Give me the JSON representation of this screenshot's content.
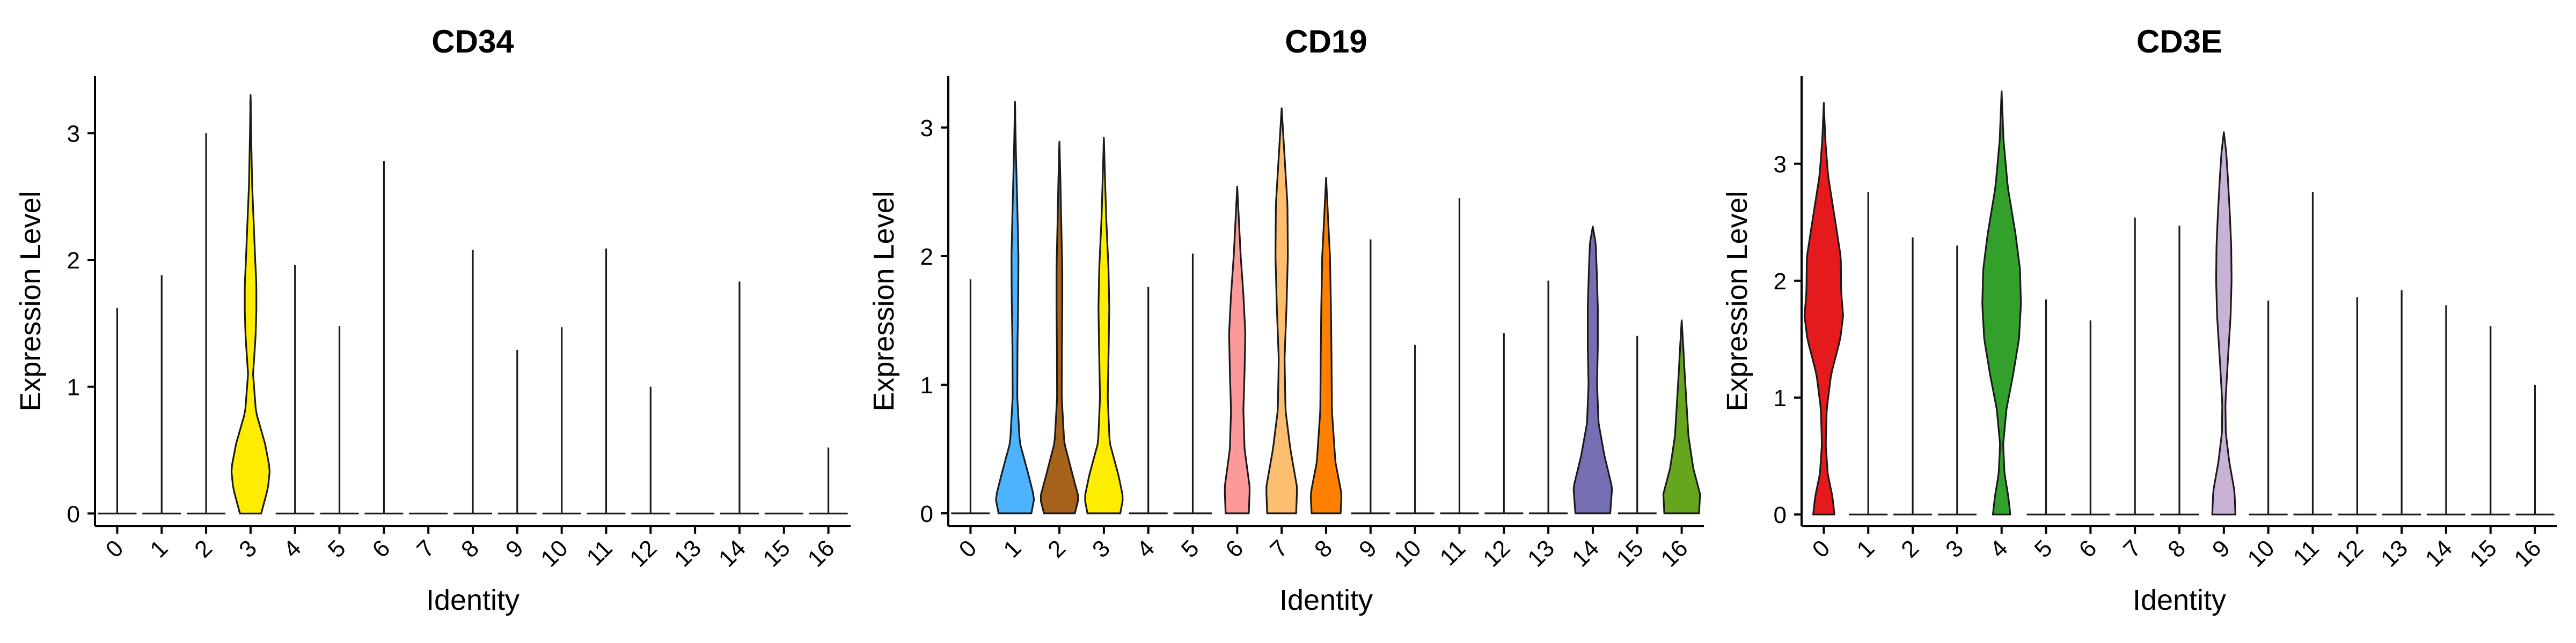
{
  "chart_data": [
    {
      "type": "violin",
      "title": "CD34",
      "xlabel": "Identity",
      "ylabel": "Expression Level",
      "categories": [
        "0",
        "1",
        "2",
        "3",
        "4",
        "5",
        "6",
        "7",
        "8",
        "9",
        "10",
        "11",
        "12",
        "13",
        "14",
        "15",
        "16"
      ],
      "y_ticks": [
        0,
        1,
        2,
        3
      ],
      "ylim": [
        -0.1,
        3.45
      ],
      "colors": [
        "#e41a1c",
        "#4db3ff",
        "#a6611a",
        "#ffed00",
        "#33a02c",
        "#ff1493",
        "#fb9a99",
        "#fdbf6f",
        "#ff7f00",
        "#cab2d6",
        "#6a3d9a",
        "#ffff99",
        "#b15928",
        "#8dd3c7",
        "#7570b3",
        "#e7298a",
        "#66a61e"
      ],
      "max_values": [
        1.62,
        1.88,
        3.0,
        3.3,
        1.96,
        1.48,
        2.78,
        0.0,
        2.08,
        1.29,
        1.47,
        2.09,
        1.0,
        0.0,
        1.83,
        0.0,
        0.52
      ],
      "density_profiles": [
        null,
        null,
        null,
        [
          [
            0.0,
            0.55
          ],
          [
            0.2,
            0.9
          ],
          [
            0.35,
            1.0
          ],
          [
            0.55,
            0.75
          ],
          [
            0.8,
            0.28
          ],
          [
            1.1,
            0.13
          ],
          [
            1.4,
            0.26
          ],
          [
            1.6,
            0.3
          ],
          [
            1.8,
            0.3
          ],
          [
            2.0,
            0.24
          ],
          [
            2.3,
            0.16
          ],
          [
            2.6,
            0.08
          ],
          [
            3.0,
            0.03
          ],
          [
            3.3,
            0.0
          ]
        ],
        null,
        null,
        null,
        null,
        null,
        null,
        null,
        null,
        null,
        null,
        null,
        null,
        null
      ]
    },
    {
      "type": "violin",
      "title": "CD19",
      "xlabel": "Identity",
      "ylabel": "Expression Level",
      "categories": [
        "0",
        "1",
        "2",
        "3",
        "4",
        "5",
        "6",
        "7",
        "8",
        "9",
        "10",
        "11",
        "12",
        "13",
        "14",
        "15",
        "16"
      ],
      "y_ticks": [
        0,
        1,
        2,
        3
      ],
      "ylim": [
        -0.1,
        3.4
      ],
      "colors": [
        "#e41a1c",
        "#4db3ff",
        "#a6611a",
        "#ffed00",
        "#33a02c",
        "#ff1493",
        "#fb9a99",
        "#fdbf6f",
        "#ff7f00",
        "#cab2d6",
        "#6a3d9a",
        "#ffff99",
        "#b15928",
        "#8dd3c7",
        "#7570b3",
        "#e7298a",
        "#66a61e"
      ],
      "max_values": [
        1.82,
        3.2,
        2.89,
        2.92,
        1.76,
        2.02,
        2.54,
        3.15,
        2.61,
        2.13,
        1.31,
        2.45,
        1.4,
        1.81,
        2.23,
        1.38,
        1.5
      ],
      "density_profiles": [
        null,
        [
          [
            0.0,
            0.85
          ],
          [
            0.12,
            1.0
          ],
          [
            0.3,
            0.7
          ],
          [
            0.55,
            0.25
          ],
          [
            0.9,
            0.12
          ],
          [
            1.3,
            0.13
          ],
          [
            1.7,
            0.17
          ],
          [
            2.0,
            0.18
          ],
          [
            2.4,
            0.12
          ],
          [
            2.8,
            0.05
          ],
          [
            3.2,
            0.0
          ]
        ],
        [
          [
            0.0,
            0.8
          ],
          [
            0.12,
            1.0
          ],
          [
            0.3,
            0.68
          ],
          [
            0.55,
            0.25
          ],
          [
            0.9,
            0.12
          ],
          [
            1.3,
            0.13
          ],
          [
            1.6,
            0.15
          ],
          [
            1.9,
            0.15
          ],
          [
            2.3,
            0.09
          ],
          [
            2.6,
            0.05
          ],
          [
            2.89,
            0.0
          ]
        ],
        [
          [
            0.0,
            0.85
          ],
          [
            0.12,
            1.0
          ],
          [
            0.3,
            0.75
          ],
          [
            0.55,
            0.3
          ],
          [
            0.9,
            0.2
          ],
          [
            1.3,
            0.25
          ],
          [
            1.6,
            0.28
          ],
          [
            1.9,
            0.24
          ],
          [
            2.3,
            0.12
          ],
          [
            2.6,
            0.06
          ],
          [
            2.92,
            0.0
          ]
        ],
        null,
        null,
        [
          [
            0.0,
            0.6
          ],
          [
            0.2,
            0.65
          ],
          [
            0.5,
            0.38
          ],
          [
            0.8,
            0.32
          ],
          [
            1.1,
            0.38
          ],
          [
            1.4,
            0.42
          ],
          [
            1.7,
            0.32
          ],
          [
            2.0,
            0.18
          ],
          [
            2.3,
            0.08
          ],
          [
            2.54,
            0.0
          ]
        ],
        [
          [
            0.0,
            0.75
          ],
          [
            0.2,
            0.8
          ],
          [
            0.5,
            0.45
          ],
          [
            0.8,
            0.2
          ],
          [
            1.2,
            0.15
          ],
          [
            1.6,
            0.25
          ],
          [
            2.0,
            0.32
          ],
          [
            2.4,
            0.3
          ],
          [
            2.8,
            0.14
          ],
          [
            3.15,
            0.0
          ]
        ],
        [
          [
            0.0,
            0.75
          ],
          [
            0.15,
            0.8
          ],
          [
            0.4,
            0.48
          ],
          [
            0.8,
            0.3
          ],
          [
            1.2,
            0.28
          ],
          [
            1.6,
            0.25
          ],
          [
            2.0,
            0.2
          ],
          [
            2.3,
            0.1
          ],
          [
            2.61,
            0.0
          ]
        ],
        null,
        null,
        null,
        null,
        null,
        [
          [
            0.0,
            0.9
          ],
          [
            0.2,
            1.0
          ],
          [
            0.45,
            0.6
          ],
          [
            0.7,
            0.3
          ],
          [
            1.0,
            0.22
          ],
          [
            1.3,
            0.26
          ],
          [
            1.6,
            0.26
          ],
          [
            1.9,
            0.2
          ],
          [
            2.1,
            0.15
          ],
          [
            2.23,
            0.0
          ]
        ],
        null,
        [
          [
            0.0,
            0.9
          ],
          [
            0.15,
            0.95
          ],
          [
            0.35,
            0.6
          ],
          [
            0.6,
            0.35
          ],
          [
            0.85,
            0.25
          ],
          [
            1.1,
            0.15
          ],
          [
            1.3,
            0.08
          ],
          [
            1.5,
            0.0
          ]
        ]
      ]
    },
    {
      "type": "violin",
      "title": "CD3E",
      "xlabel": "Identity",
      "ylabel": "Expression Level",
      "categories": [
        "0",
        "1",
        "2",
        "3",
        "4",
        "5",
        "6",
        "7",
        "8",
        "9",
        "10",
        "11",
        "12",
        "13",
        "14",
        "15",
        "16"
      ],
      "y_ticks": [
        0,
        1,
        2,
        3
      ],
      "ylim": [
        -0.1,
        3.75
      ],
      "colors": [
        "#e41a1c",
        "#4db3ff",
        "#a6611a",
        "#ffed00",
        "#33a02c",
        "#ff1493",
        "#fb9a99",
        "#fdbf6f",
        "#ff7f00",
        "#cab2d6",
        "#6a3d9a",
        "#ffff99",
        "#b15928",
        "#8dd3c7",
        "#7570b3",
        "#e7298a",
        "#66a61e"
      ],
      "max_values": [
        3.52,
        2.76,
        2.37,
        2.3,
        3.62,
        1.84,
        1.66,
        2.54,
        2.47,
        3.27,
        1.83,
        2.76,
        1.86,
        1.92,
        1.79,
        1.61,
        1.11
      ],
      "density_profiles": [
        [
          [
            0.0,
            0.55
          ],
          [
            0.15,
            0.45
          ],
          [
            0.35,
            0.2
          ],
          [
            0.6,
            0.1
          ],
          [
            0.9,
            0.15
          ],
          [
            1.2,
            0.38
          ],
          [
            1.5,
            0.85
          ],
          [
            1.7,
            1.0
          ],
          [
            1.9,
            0.9
          ],
          [
            2.2,
            0.88
          ],
          [
            2.5,
            0.6
          ],
          [
            2.9,
            0.22
          ],
          [
            3.2,
            0.08
          ],
          [
            3.52,
            0.0
          ]
        ],
        null,
        null,
        null,
        [
          [
            0.0,
            0.45
          ],
          [
            0.15,
            0.35
          ],
          [
            0.35,
            0.15
          ],
          [
            0.6,
            0.08
          ],
          [
            0.9,
            0.25
          ],
          [
            1.2,
            0.6
          ],
          [
            1.5,
            0.9
          ],
          [
            1.8,
            1.0
          ],
          [
            2.1,
            0.95
          ],
          [
            2.4,
            0.72
          ],
          [
            2.8,
            0.32
          ],
          [
            3.2,
            0.1
          ],
          [
            3.62,
            0.0
          ]
        ],
        null,
        null,
        null,
        null,
        [
          [
            0.0,
            0.6
          ],
          [
            0.2,
            0.55
          ],
          [
            0.45,
            0.28
          ],
          [
            0.7,
            0.1
          ],
          [
            0.95,
            0.08
          ],
          [
            1.3,
            0.2
          ],
          [
            1.7,
            0.35
          ],
          [
            2.0,
            0.4
          ],
          [
            2.3,
            0.38
          ],
          [
            2.6,
            0.3
          ],
          [
            2.9,
            0.2
          ],
          [
            3.1,
            0.12
          ],
          [
            3.27,
            0.0
          ]
        ],
        null,
        null,
        null,
        null,
        null,
        null,
        null
      ]
    }
  ]
}
